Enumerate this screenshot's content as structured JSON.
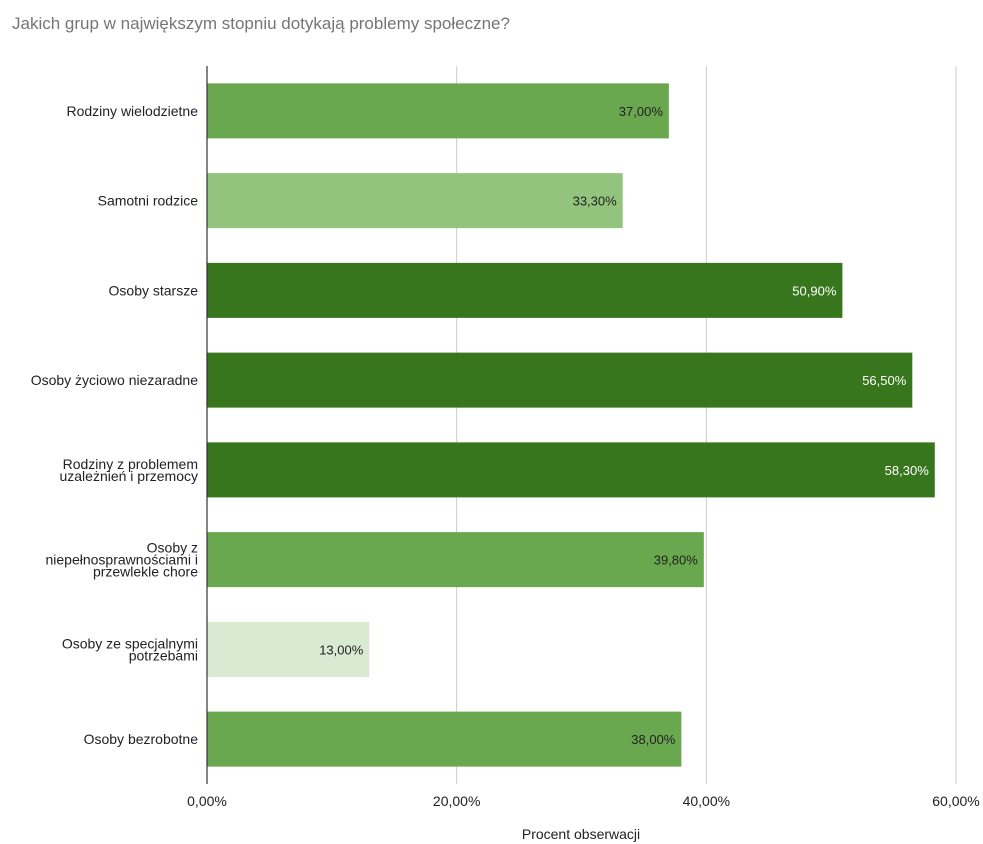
{
  "chart_data": {
    "type": "bar",
    "orientation": "horizontal",
    "title": "Jakich grup w największym stopniu dotykają problemy społeczne?",
    "xlabel": "Procent obserwacji",
    "ylabel": "",
    "xlim": [
      0,
      60
    ],
    "x_ticks": [
      {
        "value": 0,
        "label": "0,00%"
      },
      {
        "value": 20,
        "label": "20,00%"
      },
      {
        "value": 40,
        "label": "40,00%"
      },
      {
        "value": 60,
        "label": "60,00%"
      }
    ],
    "grid": true,
    "legend": "none",
    "categories": [
      {
        "lines": [
          "Rodziny wielodzietne"
        ],
        "value": 37.0,
        "label": "37,00%",
        "color": "#6aa84f",
        "label_color": "#222222"
      },
      {
        "lines": [
          "Samotni rodzice"
        ],
        "value": 33.3,
        "label": "33,30%",
        "color": "#93c47d",
        "label_color": "#222222"
      },
      {
        "lines": [
          "Osoby starsze"
        ],
        "value": 50.9,
        "label": "50,90%",
        "color": "#38761d",
        "label_color": "#ffffff"
      },
      {
        "lines": [
          "Osoby życiowo niezaradne"
        ],
        "value": 56.5,
        "label": "56,50%",
        "color": "#38761d",
        "label_color": "#ffffff"
      },
      {
        "lines": [
          "Rodziny z problemem",
          "uzależnień i przemocy"
        ],
        "value": 58.3,
        "label": "58,30%",
        "color": "#38761d",
        "label_color": "#ffffff"
      },
      {
        "lines": [
          "Osoby z",
          "niepełnosprawnościami i",
          "przewlekle chore"
        ],
        "value": 39.8,
        "label": "39,80%",
        "color": "#6aa84f",
        "label_color": "#222222"
      },
      {
        "lines": [
          "Osoby ze specjalnymi",
          "potrzebami"
        ],
        "value": 13.0,
        "label": "13,00%",
        "color": "#d9ead3",
        "label_color": "#222222"
      },
      {
        "lines": [
          "Osoby bezrobotne"
        ],
        "value": 38.0,
        "label": "38,00%",
        "color": "#6aa84f",
        "label_color": "#222222"
      }
    ]
  }
}
